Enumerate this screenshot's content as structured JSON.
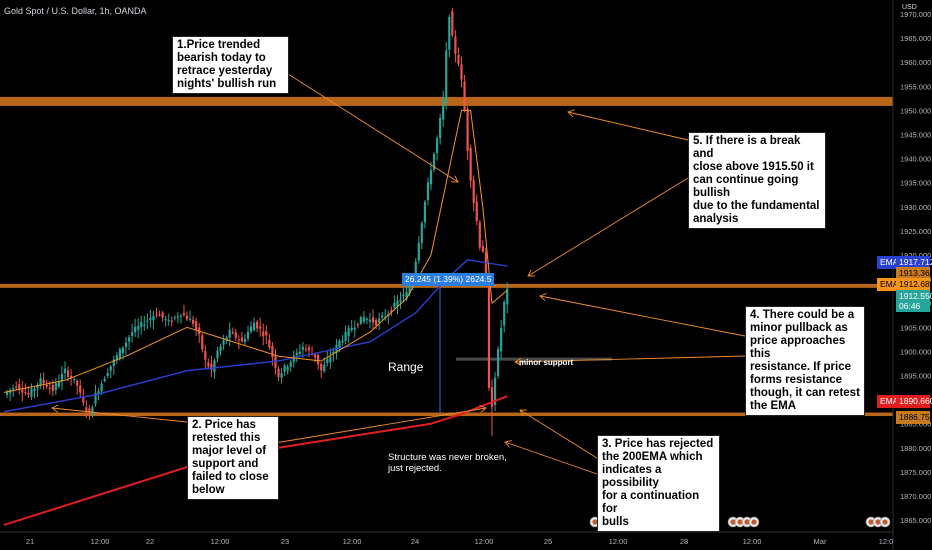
{
  "header": {
    "symbol": "Gold Spot / U.S. Dollar, 1h, OANDA"
  },
  "price_axis": {
    "currency": "USD",
    "ticks": [
      "1970.000",
      "1965.000",
      "1960.000",
      "1955.000",
      "1950.000",
      "1945.000",
      "1940.000",
      "1935.000",
      "1930.000",
      "1925.000",
      "1920.000",
      "1915.000",
      "1910.000",
      "1905.000",
      "1900.000",
      "1895.000",
      "1890.000",
      "1885.000",
      "1880.000",
      "1875.000",
      "1870.000",
      "1865.000"
    ],
    "labels": {
      "ema_blue_tag": "EMA",
      "ema_blue_value": "1917.712",
      "level_1913": "1913.367",
      "ema_orange_tag": "EMA",
      "ema_orange_value": "1912.685",
      "last_price": "1912.550",
      "countdown": "06:46",
      "ema_red_tag": "EMA",
      "ema_red_value": "1890.660",
      "level_1886": "1886.756"
    }
  },
  "time_axis": {
    "ticks": [
      "21",
      "12:00",
      "22",
      "12:00",
      "23",
      "12:00",
      "24",
      "12:00",
      "25",
      "12:00",
      "28",
      "12:00",
      "Mar",
      "12:0"
    ]
  },
  "annotations": {
    "note1": "1.Price trended\nbearish today to\nretrace yesterday\nnights' bullish run",
    "note2": "2. Price has\nretested this\nmajor level of\nsupport and\nfailed to close\nbelow",
    "note3": "3. Price has rejected\nthe 200EMA which\nindicates a possibility\nfor a continuation for\nbulls",
    "note4": "4. There could be a\nminor pullback as\nprice approaches this\nresistance. If price\nforms resistance\nthough, it can retest\nthe EMA",
    "note5": "5. If there is a break and\nclose above 1915.50 it\ncan continue going bullish\ndue to the fundamental\nanalysis",
    "range_label": "Range",
    "structure_note": "Structure was never broken,\njust rejected.",
    "minor_support": "minor support",
    "measure_label": "26.245 (1.39%) 2624.5"
  },
  "colors": {
    "background": "#000000",
    "bull": "#26a69a",
    "bear": "#ef5350",
    "zone": "#b8661a",
    "ema_fast": "#f7931a",
    "ema_mid": "#2940d3",
    "ema_slow": "#e01e1e",
    "annotation_line": "#f28c28",
    "measure": "#2a7de1"
  },
  "chart_data": {
    "type": "candlestick",
    "title": "Gold Spot / U.S. Dollar, 1h, OANDA",
    "ylim": [
      1864,
      1972
    ],
    "horizontal_levels": [
      {
        "name": "resistance zone",
        "price": 1952
      },
      {
        "name": "resistance",
        "price": 1913.5
      },
      {
        "name": "support",
        "price": 1886.8
      },
      {
        "name": "minor support",
        "price": 1898.5
      }
    ],
    "price_path": [
      [
        0,
        1891
      ],
      [
        4,
        1893
      ],
      [
        8,
        1891
      ],
      [
        12,
        1894
      ],
      [
        16,
        1892
      ],
      [
        20,
        1896
      ],
      [
        24,
        1893
      ],
      [
        26,
        1889
      ],
      [
        28,
        1887
      ],
      [
        30,
        1891
      ],
      [
        34,
        1896
      ],
      [
        38,
        1900
      ],
      [
        42,
        1904
      ],
      [
        46,
        1906
      ],
      [
        50,
        1908
      ],
      [
        54,
        1906
      ],
      [
        58,
        1908
      ],
      [
        62,
        1906
      ],
      [
        64,
        1903
      ],
      [
        66,
        1898
      ],
      [
        68,
        1896
      ],
      [
        70,
        1900
      ],
      [
        74,
        1904
      ],
      [
        78,
        1902
      ],
      [
        82,
        1906
      ],
      [
        86,
        1903
      ],
      [
        88,
        1899
      ],
      [
        90,
        1895
      ],
      [
        94,
        1898
      ],
      [
        98,
        1901
      ],
      [
        102,
        1899
      ],
      [
        104,
        1896
      ],
      [
        106,
        1898
      ],
      [
        110,
        1902
      ],
      [
        114,
        1905
      ],
      [
        118,
        1907
      ],
      [
        122,
        1906
      ],
      [
        126,
        1908
      ],
      [
        130,
        1911
      ],
      [
        132,
        1912
      ],
      [
        134,
        1915
      ],
      [
        136,
        1923
      ],
      [
        138,
        1931
      ],
      [
        140,
        1938
      ],
      [
        142,
        1944
      ],
      [
        144,
        1952
      ],
      [
        145,
        1962
      ],
      [
        146,
        1970
      ],
      [
        147,
        1965
      ],
      [
        148,
        1962
      ],
      [
        149,
        1960
      ],
      [
        150,
        1956
      ],
      [
        151,
        1950
      ],
      [
        152,
        1942
      ],
      [
        153,
        1936
      ],
      [
        154,
        1931
      ],
      [
        155,
        1927
      ],
      [
        156,
        1922
      ],
      [
        157,
        1921
      ],
      [
        158,
        1915
      ],
      [
        159,
        1892
      ],
      [
        160,
        1889
      ],
      [
        161,
        1895
      ],
      [
        162,
        1900
      ],
      [
        163,
        1905
      ],
      [
        164,
        1910
      ],
      [
        165,
        1912.5
      ]
    ],
    "ema_fast": [
      [
        0,
        1891.5
      ],
      [
        20,
        1894
      ],
      [
        40,
        1899
      ],
      [
        60,
        1905
      ],
      [
        70,
        1903
      ],
      [
        90,
        1899
      ],
      [
        104,
        1898
      ],
      [
        120,
        1904
      ],
      [
        132,
        1911
      ],
      [
        140,
        1920
      ],
      [
        146,
        1938
      ],
      [
        150,
        1950
      ],
      [
        153,
        1950
      ],
      [
        157,
        1930
      ],
      [
        160,
        1910
      ],
      [
        165,
        1912.7
      ]
    ],
    "ema_mid": [
      [
        0,
        1887.5
      ],
      [
        30,
        1891
      ],
      [
        60,
        1896
      ],
      [
        90,
        1898
      ],
      [
        120,
        1902
      ],
      [
        135,
        1908
      ],
      [
        145,
        1915
      ],
      [
        152,
        1919
      ],
      [
        165,
        1917.7
      ]
    ],
    "ema_slow": [
      [
        0,
        1864
      ],
      [
        30,
        1870
      ],
      [
        60,
        1876
      ],
      [
        90,
        1880
      ],
      [
        120,
        1883
      ],
      [
        140,
        1885
      ],
      [
        150,
        1887
      ],
      [
        158,
        1889
      ],
      [
        165,
        1890.7
      ]
    ]
  }
}
